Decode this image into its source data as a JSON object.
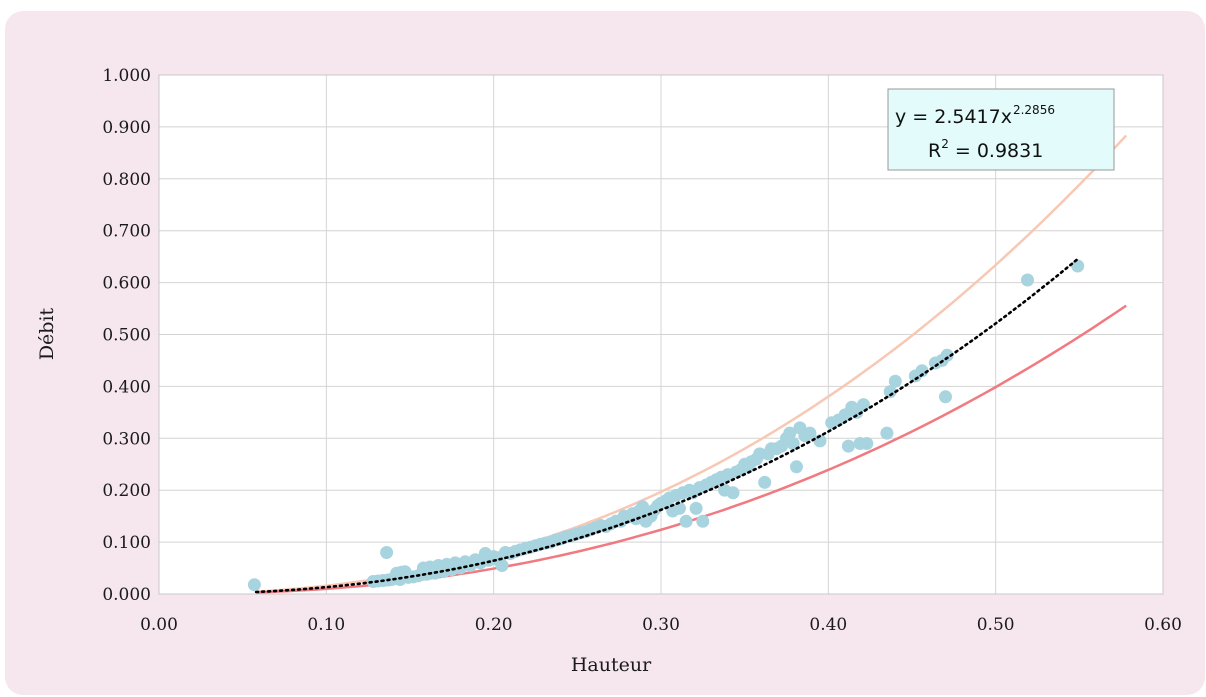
{
  "chart_data": {
    "type": "scatter",
    "xlabel": "Hauteur",
    "ylabel": "Débit",
    "xlim": [
      0,
      0.6
    ],
    "ylim": [
      0,
      1.0
    ],
    "xticks": [
      "0.00",
      "0.10",
      "0.20",
      "0.30",
      "0.40",
      "0.50",
      "0.60"
    ],
    "yticks": [
      "0.000",
      "0.100",
      "0.200",
      "0.300",
      "0.400",
      "0.500",
      "0.600",
      "0.700",
      "0.800",
      "0.900",
      "1.000"
    ],
    "grid": true,
    "colors": {
      "points": "#a8d4e0",
      "trendline": "#000000",
      "upper_curve": "#f7c8b4",
      "lower_curve": "#f07a80",
      "equation_box": "#e3fbfb"
    },
    "equation": {
      "line1_prefix": "y = 2.5417x",
      "line1_exponent": "2.2856",
      "line2_prefix": "R",
      "line2_exponent": "2",
      "line2_suffix": " = 0.9831"
    },
    "trendline": {
      "coefficient": 2.5417,
      "exponent": 2.2856,
      "x_range": [
        0.058,
        0.549
      ]
    },
    "upper_curve": {
      "coefficient": 3.1,
      "exponent": 2.29,
      "x_range": [
        0.058,
        0.578
      ]
    },
    "lower_curve": {
      "coefficient": 1.95,
      "exponent": 2.29,
      "x_range": [
        0.058,
        0.578
      ]
    },
    "points": [
      [
        0.057,
        0.018
      ],
      [
        0.128,
        0.024
      ],
      [
        0.131,
        0.025
      ],
      [
        0.134,
        0.026
      ],
      [
        0.136,
        0.08
      ],
      [
        0.137,
        0.027
      ],
      [
        0.139,
        0.028
      ],
      [
        0.141,
        0.03
      ],
      [
        0.142,
        0.04
      ],
      [
        0.144,
        0.028
      ],
      [
        0.145,
        0.042
      ],
      [
        0.147,
        0.043
      ],
      [
        0.149,
        0.032
      ],
      [
        0.152,
        0.033
      ],
      [
        0.155,
        0.035
      ],
      [
        0.158,
        0.05
      ],
      [
        0.16,
        0.038
      ],
      [
        0.162,
        0.052
      ],
      [
        0.165,
        0.04
      ],
      [
        0.167,
        0.055
      ],
      [
        0.17,
        0.043
      ],
      [
        0.172,
        0.057
      ],
      [
        0.175,
        0.047
      ],
      [
        0.177,
        0.06
      ],
      [
        0.18,
        0.05
      ],
      [
        0.183,
        0.062
      ],
      [
        0.186,
        0.055
      ],
      [
        0.189,
        0.066
      ],
      [
        0.192,
        0.06
      ],
      [
        0.195,
        0.078
      ],
      [
        0.197,
        0.065
      ],
      [
        0.2,
        0.072
      ],
      [
        0.203,
        0.065
      ],
      [
        0.205,
        0.055
      ],
      [
        0.207,
        0.08
      ],
      [
        0.21,
        0.078
      ],
      [
        0.213,
        0.082
      ],
      [
        0.216,
        0.085
      ],
      [
        0.219,
        0.088
      ],
      [
        0.222,
        0.09
      ],
      [
        0.225,
        0.093
      ],
      [
        0.228,
        0.096
      ],
      [
        0.231,
        0.098
      ],
      [
        0.234,
        0.1
      ],
      [
        0.237,
        0.104
      ],
      [
        0.24,
        0.106
      ],
      [
        0.243,
        0.11
      ],
      [
        0.246,
        0.112
      ],
      [
        0.249,
        0.115
      ],
      [
        0.252,
        0.118
      ],
      [
        0.255,
        0.12
      ],
      [
        0.258,
        0.124
      ],
      [
        0.261,
        0.128
      ],
      [
        0.264,
        0.132
      ],
      [
        0.267,
        0.13
      ],
      [
        0.27,
        0.135
      ],
      [
        0.273,
        0.14
      ],
      [
        0.276,
        0.14
      ],
      [
        0.278,
        0.15
      ],
      [
        0.28,
        0.148
      ],
      [
        0.283,
        0.155
      ],
      [
        0.285,
        0.145
      ],
      [
        0.287,
        0.16
      ],
      [
        0.289,
        0.168
      ],
      [
        0.291,
        0.14
      ],
      [
        0.294,
        0.15
      ],
      [
        0.296,
        0.162
      ],
      [
        0.298,
        0.17
      ],
      [
        0.3,
        0.175
      ],
      [
        0.303,
        0.18
      ],
      [
        0.305,
        0.185
      ],
      [
        0.307,
        0.16
      ],
      [
        0.309,
        0.19
      ],
      [
        0.311,
        0.165
      ],
      [
        0.313,
        0.195
      ],
      [
        0.315,
        0.14
      ],
      [
        0.317,
        0.2
      ],
      [
        0.319,
        0.195
      ],
      [
        0.321,
        0.165
      ],
      [
        0.323,
        0.205
      ],
      [
        0.325,
        0.14
      ],
      [
        0.327,
        0.21
      ],
      [
        0.33,
        0.215
      ],
      [
        0.333,
        0.22
      ],
      [
        0.336,
        0.225
      ],
      [
        0.338,
        0.2
      ],
      [
        0.34,
        0.23
      ],
      [
        0.343,
        0.195
      ],
      [
        0.345,
        0.235
      ],
      [
        0.348,
        0.24
      ],
      [
        0.35,
        0.25
      ],
      [
        0.352,
        0.245
      ],
      [
        0.354,
        0.255
      ],
      [
        0.357,
        0.26
      ],
      [
        0.359,
        0.27
      ],
      [
        0.362,
        0.215
      ],
      [
        0.364,
        0.27
      ],
      [
        0.366,
        0.28
      ],
      [
        0.369,
        0.28
      ],
      [
        0.372,
        0.285
      ],
      [
        0.375,
        0.3
      ],
      [
        0.377,
        0.31
      ],
      [
        0.379,
        0.29
      ],
      [
        0.381,
        0.245
      ],
      [
        0.383,
        0.32
      ],
      [
        0.386,
        0.305
      ],
      [
        0.389,
        0.31
      ],
      [
        0.395,
        0.295
      ],
      [
        0.402,
        0.33
      ],
      [
        0.406,
        0.335
      ],
      [
        0.41,
        0.345
      ],
      [
        0.412,
        0.285
      ],
      [
        0.414,
        0.36
      ],
      [
        0.417,
        0.35
      ],
      [
        0.419,
        0.29
      ],
      [
        0.421,
        0.365
      ],
      [
        0.423,
        0.29
      ],
      [
        0.435,
        0.31
      ],
      [
        0.437,
        0.39
      ],
      [
        0.44,
        0.41
      ],
      [
        0.452,
        0.42
      ],
      [
        0.456,
        0.43
      ],
      [
        0.464,
        0.445
      ],
      [
        0.468,
        0.45
      ],
      [
        0.47,
        0.38
      ],
      [
        0.471,
        0.46
      ],
      [
        0.519,
        0.605
      ],
      [
        0.549,
        0.632
      ]
    ]
  }
}
